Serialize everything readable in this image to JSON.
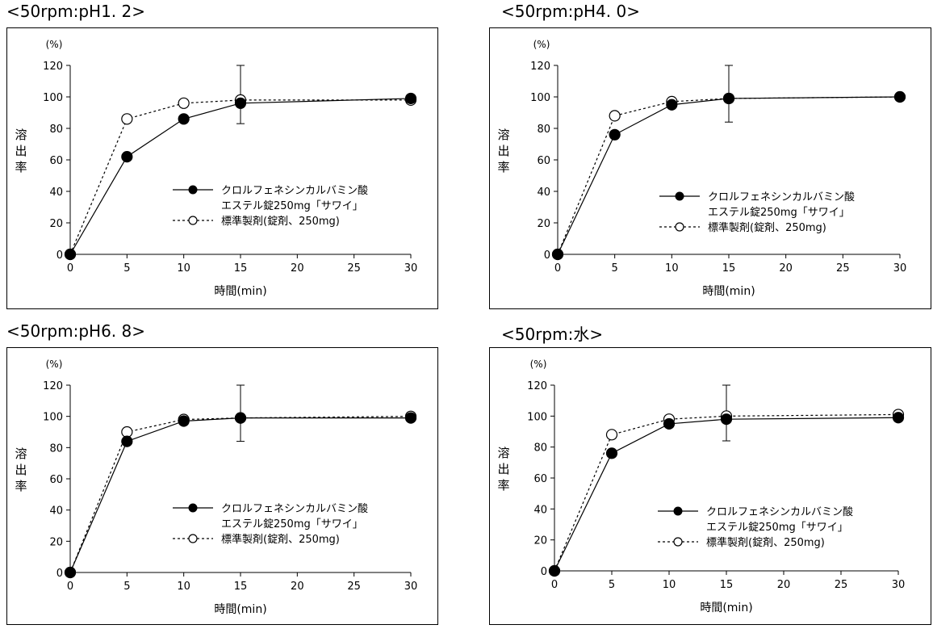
{
  "chart_data": [
    {
      "type": "line",
      "title": "<50rpm:pH1. 2>",
      "unit_label": "(%)",
      "ylabel": "溶出率",
      "xlabel": "時間(min)",
      "x_ticks": [
        0,
        5,
        10,
        15,
        20,
        25,
        30
      ],
      "y_ticks": [
        0,
        20,
        40,
        60,
        80,
        100,
        120
      ],
      "xlim": [
        0,
        30
      ],
      "ylim": [
        0,
        120
      ],
      "error_bar": {
        "x": 15,
        "low": 83,
        "high": 120
      },
      "series": [
        {
          "name": "クロルフェネシンカルバミン酸 エステル錠250mg「サワイ」",
          "name_line1": "クロルフェネシンカルバミン酸",
          "name_line2": "エステル錠250mg「サワイ」",
          "marker": "filled",
          "line": "solid",
          "x": [
            0,
            5,
            10,
            15,
            30
          ],
          "y": [
            0,
            62,
            86,
            96,
            99
          ]
        },
        {
          "name": "標準製剤(錠剤、250mg)",
          "marker": "open",
          "line": "dashed",
          "x": [
            0,
            5,
            10,
            15,
            30
          ],
          "y": [
            0,
            86,
            96,
            98,
            98
          ]
        }
      ]
    },
    {
      "type": "line",
      "title": "<50rpm:pH4. 0>",
      "unit_label": "(%)",
      "ylabel": "溶出率",
      "xlabel": "時間(min)",
      "x_ticks": [
        0,
        5,
        10,
        15,
        20,
        25,
        30
      ],
      "y_ticks": [
        0,
        20,
        40,
        60,
        80,
        100,
        120
      ],
      "xlim": [
        0,
        30
      ],
      "ylim": [
        0,
        120
      ],
      "error_bar": {
        "x": 15,
        "low": 84,
        "high": 120
      },
      "series": [
        {
          "name": "クロルフェネシンカルバミン酸 エステル錠250mg「サワイ」",
          "name_line1": "クロルフェネシンカルバミン酸",
          "name_line2": "エステル錠250mg「サワイ」",
          "marker": "filled",
          "line": "solid",
          "x": [
            0,
            5,
            10,
            15,
            30
          ],
          "y": [
            0,
            76,
            95,
            99,
            100
          ]
        },
        {
          "name": "標準製剤(錠剤、250mg)",
          "marker": "open",
          "line": "dashed",
          "x": [
            0,
            5,
            10,
            15,
            30
          ],
          "y": [
            0,
            88,
            97,
            99,
            100
          ]
        }
      ]
    },
    {
      "type": "line",
      "title": "<50rpm:pH6. 8>",
      "unit_label": "(%)",
      "ylabel": "溶出率",
      "xlabel": "時間(min)",
      "x_ticks": [
        0,
        5,
        10,
        15,
        20,
        25,
        30
      ],
      "y_ticks": [
        0,
        20,
        40,
        60,
        80,
        100,
        120
      ],
      "xlim": [
        0,
        30
      ],
      "ylim": [
        0,
        120
      ],
      "error_bar": {
        "x": 15,
        "low": 84,
        "high": 120
      },
      "series": [
        {
          "name": "クロルフェネシンカルバミン酸 エステル錠250mg「サワイ」",
          "name_line1": "クロルフェネシンカルバミン酸",
          "name_line2": "エステル錠250mg「サワイ」",
          "marker": "filled",
          "line": "solid",
          "x": [
            0,
            5,
            10,
            15,
            30
          ],
          "y": [
            0,
            84,
            97,
            99,
            99
          ]
        },
        {
          "name": "標準製剤(錠剤、250mg)",
          "marker": "open",
          "line": "dashed",
          "x": [
            0,
            5,
            10,
            15,
            30
          ],
          "y": [
            0,
            90,
            98,
            99,
            100
          ]
        }
      ]
    },
    {
      "type": "line",
      "title": "<50rpm:水>",
      "unit_label": "(%)",
      "ylabel": "溶出率",
      "xlabel": "時間(min)",
      "x_ticks": [
        0,
        5,
        10,
        15,
        20,
        25,
        30
      ],
      "y_ticks": [
        0,
        20,
        40,
        60,
        80,
        100,
        120
      ],
      "xlim": [
        0,
        30
      ],
      "ylim": [
        0,
        120
      ],
      "error_bar": {
        "x": 15,
        "low": 84,
        "high": 120
      },
      "series": [
        {
          "name": "クロルフェネシンカルバミン酸 エステル錠250mg「サワイ」",
          "name_line1": "クロルフェネシンカルバミン酸",
          "name_line2": "エステル錠250mg「サワイ」",
          "marker": "filled",
          "line": "solid",
          "x": [
            0,
            5,
            10,
            15,
            30
          ],
          "y": [
            0,
            76,
            95,
            98,
            99
          ]
        },
        {
          "name": "標準製剤(錠剤、250mg)",
          "marker": "open",
          "line": "dashed",
          "x": [
            0,
            5,
            10,
            15,
            30
          ],
          "y": [
            0,
            88,
            98,
            100,
            101
          ]
        }
      ]
    }
  ]
}
